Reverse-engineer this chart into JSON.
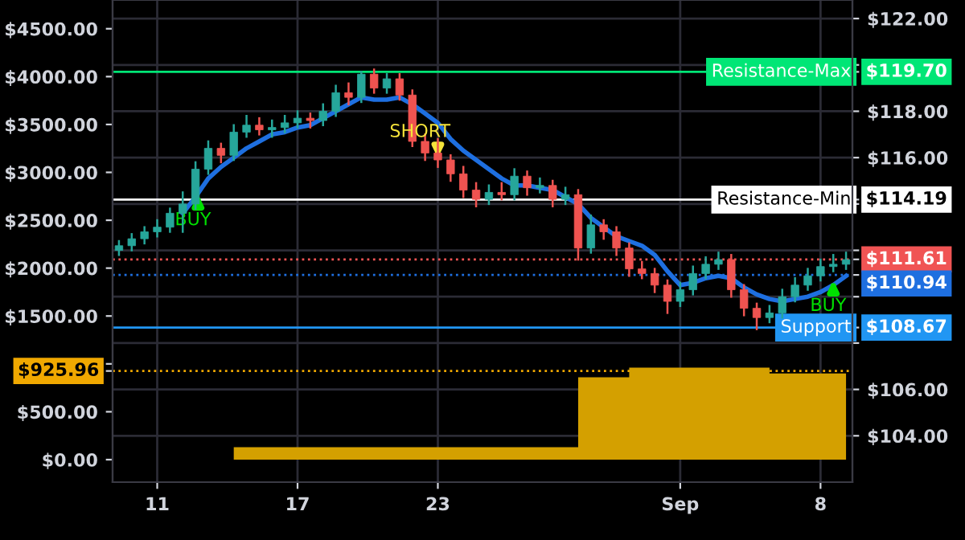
{
  "chart_data": {
    "type": "candlestick",
    "categories": [
      null,
      null,
      null,
      "11",
      null,
      null,
      null,
      null,
      null,
      null,
      null,
      null,
      null,
      null,
      "17",
      null,
      null,
      null,
      null,
      null,
      null,
      null,
      null,
      null,
      null,
      "23",
      null,
      null,
      null,
      null,
      null,
      null,
      null,
      null,
      null,
      null,
      null,
      null,
      null,
      null,
      null,
      null,
      null,
      null,
      "Sep",
      null,
      null,
      null,
      null,
      null,
      null,
      null,
      null,
      null,
      null,
      "8",
      null,
      null
    ],
    "ohlc": [
      [
        112.0,
        112.4,
        111.8,
        112.2
      ],
      [
        112.2,
        112.7,
        112.0,
        112.5
      ],
      [
        112.5,
        113.0,
        112.3,
        112.8
      ],
      [
        112.8,
        113.3,
        112.6,
        113.0
      ],
      [
        113.0,
        113.8,
        112.8,
        113.6
      ],
      [
        113.6,
        114.5,
        112.8,
        114.0
      ],
      [
        114.0,
        115.8,
        113.8,
        115.5
      ],
      [
        115.5,
        116.7,
        115.3,
        116.4
      ],
      [
        116.4,
        116.6,
        115.8,
        116.1
      ],
      [
        116.1,
        117.4,
        115.9,
        117.1
      ],
      [
        117.1,
        117.8,
        116.9,
        117.4
      ],
      [
        117.4,
        117.7,
        117.0,
        117.2
      ],
      [
        117.2,
        117.6,
        116.9,
        117.3
      ],
      [
        117.3,
        117.8,
        117.1,
        117.5
      ],
      [
        117.5,
        118.0,
        117.3,
        117.7
      ],
      [
        117.7,
        117.9,
        117.3,
        117.6
      ],
      [
        117.6,
        118.3,
        117.4,
        118.0
      ],
      [
        118.0,
        119.1,
        117.8,
        118.8
      ],
      [
        118.8,
        119.2,
        118.3,
        118.6
      ],
      [
        118.6,
        119.7,
        118.4,
        119.6
      ],
      [
        119.6,
        119.8,
        118.8,
        119.0
      ],
      [
        119.0,
        119.6,
        118.8,
        119.4
      ],
      [
        119.4,
        119.6,
        118.5,
        118.7
      ],
      [
        118.7,
        118.9,
        116.5,
        116.7
      ],
      [
        116.7,
        117.0,
        115.9,
        116.2
      ],
      [
        116.2,
        116.8,
        115.6,
        115.9
      ],
      [
        115.9,
        116.1,
        115.0,
        115.3
      ],
      [
        115.3,
        115.6,
        114.3,
        114.6
      ],
      [
        114.6,
        114.9,
        113.9,
        114.2
      ],
      [
        114.2,
        114.8,
        114.0,
        114.5
      ],
      [
        114.5,
        114.9,
        114.2,
        114.4
      ],
      [
        114.4,
        115.5,
        114.2,
        115.2
      ],
      [
        115.2,
        115.4,
        114.4,
        114.7
      ],
      [
        114.7,
        115.1,
        114.5,
        114.8
      ],
      [
        114.8,
        115.0,
        113.9,
        114.2
      ],
      [
        114.2,
        114.7,
        114.0,
        114.4
      ],
      [
        114.4,
        114.6,
        111.6,
        112.1
      ],
      [
        112.1,
        113.5,
        111.9,
        113.1
      ],
      [
        113.1,
        113.3,
        112.5,
        112.8
      ],
      [
        112.8,
        113.0,
        111.8,
        112.1
      ],
      [
        112.1,
        112.3,
        110.9,
        111.2
      ],
      [
        111.2,
        111.5,
        110.8,
        111.0
      ],
      [
        111.0,
        111.2,
        110.2,
        110.5
      ],
      [
        110.5,
        110.7,
        109.3,
        109.8
      ],
      [
        109.8,
        110.6,
        109.6,
        110.3
      ],
      [
        110.3,
        111.3,
        110.1,
        111.0
      ],
      [
        111.0,
        111.7,
        110.8,
        111.4
      ],
      [
        111.4,
        111.9,
        111.2,
        111.6
      ],
      [
        111.6,
        111.8,
        110.0,
        110.3
      ],
      [
        110.3,
        110.5,
        109.2,
        109.5
      ],
      [
        109.5,
        109.7,
        108.6,
        109.1
      ],
      [
        109.1,
        109.6,
        108.9,
        109.3
      ],
      [
        109.3,
        110.3,
        109.1,
        110.0
      ],
      [
        110.0,
        110.8,
        109.8,
        110.5
      ],
      [
        110.5,
        111.2,
        110.3,
        110.9
      ],
      [
        110.9,
        111.6,
        110.7,
        111.3
      ],
      [
        111.3,
        111.8,
        111.1,
        111.4
      ],
      [
        111.4,
        111.9,
        111.2,
        111.6
      ]
    ],
    "series": [
      {
        "type": "line",
        "color": "#1e6fe0",
        "values": [
          null,
          null,
          null,
          null,
          null,
          113.6,
          114.3,
          115.1,
          115.6,
          116.0,
          116.4,
          116.7,
          117.0,
          117.1,
          117.3,
          117.4,
          117.7,
          118.0,
          118.3,
          118.6,
          118.5,
          118.5,
          118.6,
          118.3,
          117.9,
          117.5,
          116.8,
          116.3,
          115.9,
          115.5,
          115.1,
          114.8,
          114.8,
          114.7,
          114.6,
          114.3,
          114.0,
          113.4,
          113.0,
          112.6,
          112.4,
          112.2,
          111.8,
          111.1,
          110.5,
          110.6,
          110.8,
          110.9,
          110.8,
          110.4,
          110.1,
          109.9,
          109.8,
          109.9,
          110.0,
          110.2,
          110.5,
          110.9
        ]
      },
      {
        "type": "area",
        "axis": "y2",
        "color": "#d4a000",
        "values": [
          0,
          0,
          0,
          0,
          0,
          0,
          0,
          0,
          0,
          130,
          130,
          130,
          130,
          130,
          130,
          130,
          130,
          130,
          130,
          130,
          130,
          130,
          130,
          130,
          130,
          130,
          130,
          130,
          130,
          130,
          130,
          130,
          130,
          130,
          130,
          130,
          860,
          860,
          860,
          860,
          960,
          960,
          960,
          960,
          960,
          960,
          960,
          960,
          960,
          960,
          960,
          900,
          900,
          900,
          900,
          900,
          900,
          925.96
        ]
      }
    ],
    "y2lim": [
      -235,
      4800
    ],
    "y2ticks": [
      {
        "value": 0,
        "label": "$0.00"
      },
      {
        "value": 500,
        "label": "$500.00"
      },
      {
        "value": 925.96,
        "label": "$925.96"
      },
      {
        "value": 1000,
        "label": null
      },
      {
        "value": 1500,
        "label": "$1500.00"
      },
      {
        "value": 2000,
        "label": "$2000.00"
      },
      {
        "value": 2500,
        "label": "$2500.00"
      },
      {
        "value": 3000,
        "label": "$3000.00"
      },
      {
        "value": 3500,
        "label": "$3500.00"
      },
      {
        "value": 4000,
        "label": "$4000.00"
      },
      {
        "value": 4500,
        "label": "$4500.00"
      }
    ],
    "ylim": [
      102,
      122.8
    ],
    "yticks": [
      {
        "value": 104,
        "label": "$104.00"
      },
      {
        "value": 106,
        "label": "$106.00"
      },
      {
        "value": 108,
        "label": null
      },
      {
        "value": 108.67,
        "label": "$108.67"
      },
      {
        "value": 110,
        "label": null
      },
      {
        "value": 110.94,
        "label": "$110.94"
      },
      {
        "value": 111.61,
        "label": "$111.61"
      },
      {
        "value": 112,
        "label": null
      },
      {
        "value": 114,
        "label": null
      },
      {
        "value": 114.19,
        "label": "$114.19"
      },
      {
        "value": 116,
        "label": "$116.00"
      },
      {
        "value": 118,
        "label": "$118.00"
      },
      {
        "value": 119.7,
        "label": "$119.70"
      },
      {
        "value": 120,
        "label": null
      },
      {
        "value": 122,
        "label": "$122.00"
      }
    ],
    "ref_lines": [
      {
        "axis": "y",
        "value": 119.7,
        "label": "Resistance-Max",
        "color": "#00e676",
        "line_style": "solid"
      },
      {
        "axis": "y",
        "value": 114.19,
        "label": "Resistance-Min",
        "color": "#ffffff",
        "line_style": "solid"
      },
      {
        "axis": "y",
        "value": 111.61,
        "label": null,
        "color": "#f05454",
        "line_style": "dotted"
      },
      {
        "axis": "y",
        "value": 110.94,
        "label": null,
        "color": "#1e6fe0",
        "line_style": "dotted"
      },
      {
        "axis": "y",
        "value": 108.67,
        "label": "Support",
        "color": "#2196f3",
        "line_style": "solid"
      },
      {
        "axis": "y2",
        "value": 925.96,
        "label": null,
        "color": "#f0a800",
        "line_style": "dotted"
      }
    ],
    "annotations": [
      "BUY",
      {
        "text": "SHORT",
        "x": "23",
        "y": 115.8
      },
      "BUY"
    ],
    "grid": true,
    "legend": false
  }
}
